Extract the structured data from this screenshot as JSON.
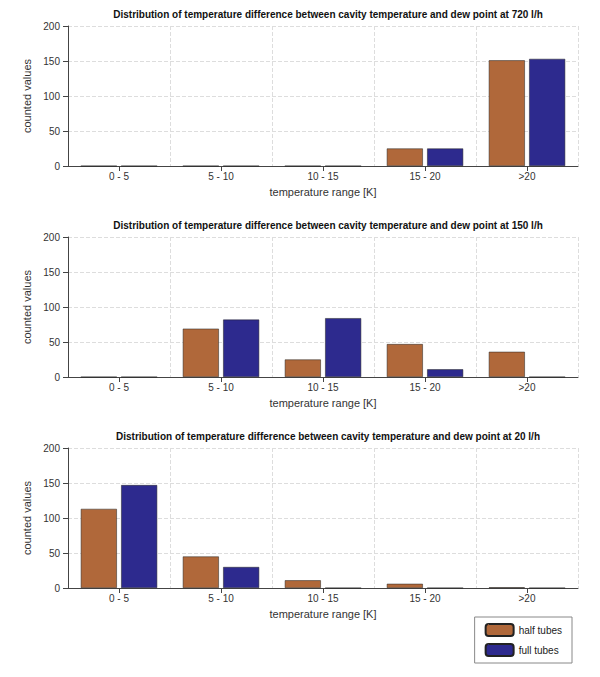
{
  "chart_data": [
    {
      "type": "bar",
      "title": "Distribution of temperature difference between cavity temperature and dew point at 720 l/h",
      "x_label": "temperature range [K]",
      "y_label": "counted values",
      "categories": [
        "0 - 5",
        "5 - 10",
        "10 - 15",
        "15 - 20",
        ">20"
      ],
      "series": [
        {
          "name": "half tubes",
          "color": "#b0683a",
          "values": [
            0,
            0,
            0,
            25,
            151
          ]
        },
        {
          "name": "full tubes",
          "color": "#2d2a8e",
          "values": [
            0,
            0,
            0,
            25,
            153
          ]
        }
      ],
      "ylim": [
        0,
        200
      ],
      "yticks": [
        0,
        50,
        100,
        150,
        200
      ],
      "grid": true
    },
    {
      "type": "bar",
      "title": "Distribution of temperature difference between cavity temperature and dew point at 150 l/h",
      "x_label": "temperature range [K]",
      "y_label": "counted values",
      "categories": [
        "0 - 5",
        "5 - 10",
        "10 - 15",
        "15 - 20",
        ">20"
      ],
      "series": [
        {
          "name": "half tubes",
          "color": "#b0683a",
          "values": [
            0,
            69,
            25,
            47,
            36
          ]
        },
        {
          "name": "full tubes",
          "color": "#2d2a8e",
          "values": [
            0,
            82,
            84,
            11,
            0
          ]
        }
      ],
      "ylim": [
        0,
        200
      ],
      "yticks": [
        0,
        50,
        100,
        150,
        200
      ],
      "grid": true
    },
    {
      "type": "bar",
      "title": "Distribution of temperature difference between cavity temperature and dew point at 20 l/h",
      "x_label": "temperature range [K]",
      "y_label": "counted values",
      "categories": [
        "0 - 5",
        "5 - 10",
        "10 - 15",
        "15 - 20",
        ">20"
      ],
      "series": [
        {
          "name": "half tubes",
          "color": "#b0683a",
          "values": [
            113,
            45,
            11,
            6,
            1
          ]
        },
        {
          "name": "full tubes",
          "color": "#2d2a8e",
          "values": [
            147,
            30,
            0,
            0,
            0
          ]
        }
      ],
      "ylim": [
        0,
        200
      ],
      "yticks": [
        0,
        50,
        100,
        150,
        200
      ],
      "grid": true,
      "legend": "lower right"
    }
  ]
}
